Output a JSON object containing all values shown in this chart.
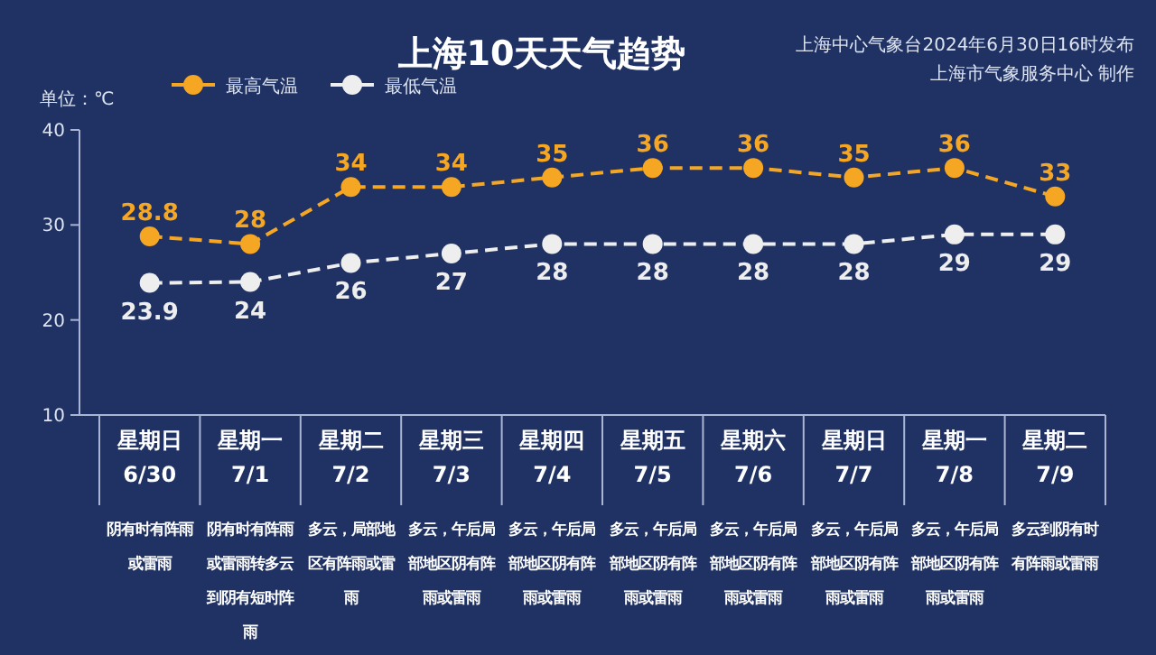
{
  "chart_data": {
    "type": "line",
    "title": "上海10天天气趋势",
    "ylabel": "单位：℃",
    "categories": [
      "星期日\n6/30",
      "星期一\n7/1",
      "星期二\n7/2",
      "星期三\n7/3",
      "星期四\n7/4",
      "星期五\n7/5",
      "星期六\n7/6",
      "星期日\n7/7",
      "星期一\n7/8",
      "星期二\n7/9"
    ],
    "series": [
      {
        "name": "最高气温",
        "color": "#f5a623",
        "values": [
          28.8,
          28,
          34,
          34,
          35,
          36,
          36,
          35,
          36,
          33
        ]
      },
      {
        "name": "最低气温",
        "color": "#eeeeee",
        "values": [
          23.9,
          24,
          26,
          27,
          28,
          28,
          28,
          28,
          29,
          29
        ]
      }
    ],
    "ylim": [
      10,
      40
    ],
    "yticks": [
      10,
      20,
      30,
      40
    ],
    "grid": false,
    "legend": "top left",
    "marker": "circle",
    "line_style": "dashed",
    "data_labels": true,
    "annotations": [
      "上海中心气象台2024年6月30日16时发布",
      "上海市气象服务中心 制作",
      "阴有时有阵雨或雷雨",
      "阴有时有阵雨或雷雨转多云到阴有短时阵雨",
      "多云，局部地区有阵雨或雷雨",
      "多云，午后局部地区阴有阵雨或雷雨",
      "多云，午后局部地区阴有阵雨或雷雨",
      "多云，午后局部地区阴有阵雨或雷雨",
      "多云，午后局部地区阴有阵雨或雷雨",
      "多云，午后局部地区阴有阵雨或雷雨",
      "多云，午后局部地区阴有阵雨或雷雨",
      "多云到阴有时有阵雨或雷雨"
    ]
  }
}
